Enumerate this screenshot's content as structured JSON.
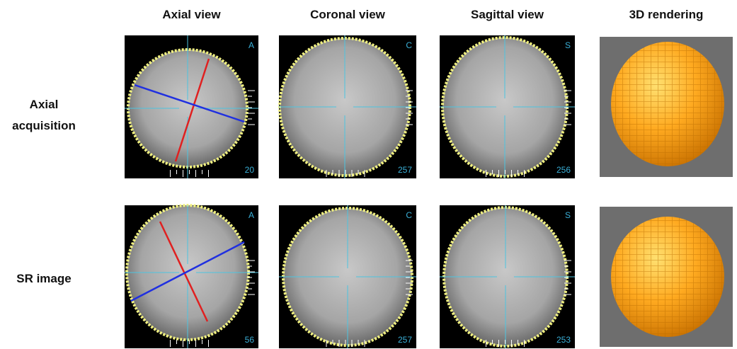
{
  "columns": [
    "Axial view",
    "Coronal view",
    "Sagittal view",
    "3D rendering"
  ],
  "rows": [
    {
      "label": "Axial acquisition",
      "panels": [
        {
          "letter": "A",
          "number": "20"
        },
        {
          "letter": "C",
          "number": "257"
        },
        {
          "letter": "S",
          "number": "256"
        }
      ]
    },
    {
      "label": "SR image",
      "panels": [
        {
          "letter": "A",
          "number": "56"
        },
        {
          "letter": "C",
          "number": "257"
        },
        {
          "letter": "S",
          "number": "253"
        }
      ]
    }
  ]
}
